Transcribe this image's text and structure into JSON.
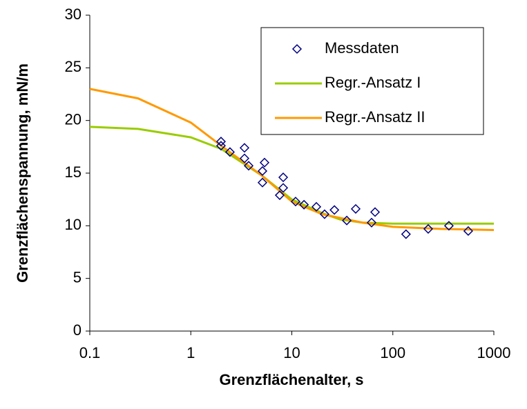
{
  "chart_data": {
    "type": "scatter-line",
    "xlabel": "Grenzflächenalter, s",
    "ylabel": "Grenzflächenspannung, mN/m",
    "xscale": "log",
    "xlim": [
      0.1,
      1000
    ],
    "xticks": [
      0.1,
      1,
      10,
      100,
      1000
    ],
    "ylim": [
      0,
      30
    ],
    "yticks": [
      0,
      5,
      10,
      15,
      20,
      25,
      30
    ],
    "legend": "upper right",
    "series": [
      {
        "name": "Messdaten",
        "color": "#000080",
        "kind": "markers",
        "x": [
          1.99,
          1.99,
          2.44,
          3.4,
          3.4,
          3.74,
          5.37,
          5.12,
          5.12,
          8.22,
          8.22,
          7.59,
          10.9,
          13.2,
          17.5,
          21.1,
          26.4,
          35,
          42.9,
          61.6,
          66.7,
          135,
          224,
          359,
          558
        ],
        "values": [
          18.0,
          17.6,
          17.0,
          17.4,
          16.4,
          15.7,
          16.0,
          15.2,
          14.1,
          14.6,
          13.6,
          12.9,
          12.3,
          12.0,
          11.8,
          11.1,
          11.5,
          10.5,
          11.6,
          10.3,
          11.3,
          9.2,
          9.7,
          10.0,
          9.5
        ]
      },
      {
        "name": "Regr.-Ansatz I",
        "color": "#99cc00",
        "kind": "line",
        "x": [
          0.1,
          0.3,
          1,
          2,
          5,
          10,
          20,
          30,
          50,
          100,
          1000
        ],
        "values": [
          19.4,
          19.2,
          18.4,
          17.3,
          14.8,
          12.5,
          11.2,
          10.6,
          10.3,
          10.2,
          10.2
        ]
      },
      {
        "name": "Regr.-Ansatz II",
        "color": "#ff9900",
        "kind": "line",
        "x": [
          0.1,
          0.3,
          1,
          2,
          5,
          10,
          20,
          50,
          100,
          300,
          1000
        ],
        "values": [
          23.0,
          22.1,
          19.8,
          17.6,
          14.8,
          12.3,
          11.1,
          10.3,
          9.9,
          9.7,
          9.6
        ]
      }
    ]
  }
}
